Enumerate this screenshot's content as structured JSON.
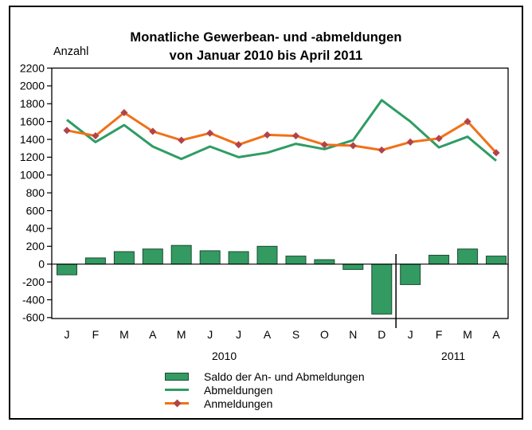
{
  "figure": {
    "background": "#ffffff",
    "border_color": "#000000"
  },
  "chart_data": {
    "type": "combo-bar-line",
    "title_line1": "Monatliche Gewerbean- und -abmeldungen",
    "title_line2": "von Januar 2010 bis April 2011",
    "y_axis_label": "Anzahl",
    "ylim": [
      -600,
      2200
    ],
    "y_ticks": [
      2200,
      2000,
      1800,
      1600,
      1400,
      1200,
      1000,
      800,
      600,
      400,
      200,
      0,
      -200,
      -400,
      -600
    ],
    "x_tick_labels": [
      "J",
      "F",
      "M",
      "A",
      "M",
      "J",
      "J",
      "A",
      "S",
      "O",
      "N",
      "D",
      "J",
      "F",
      "M",
      "A"
    ],
    "year_labels": [
      "2010",
      "2011"
    ],
    "year_group_ranges": [
      [
        0,
        11
      ],
      [
        12,
        15
      ]
    ],
    "year_divider_after_index": 11,
    "grid": false,
    "legend_position": "bottom",
    "axis_color": "#000000",
    "series": [
      {
        "name": "Saldo der An- und Abmeldungen",
        "type": "bar",
        "color": "#339a62",
        "border_color": "#1b4d31",
        "values": [
          -120,
          70,
          140,
          170,
          210,
          150,
          140,
          200,
          90,
          50,
          -60,
          -560,
          -230,
          100,
          170,
          90
        ]
      },
      {
        "name": "Abmeldungen",
        "type": "line",
        "color": "#2f9c64",
        "values": [
          1620,
          1370,
          1560,
          1320,
          1180,
          1320,
          1200,
          1250,
          1350,
          1290,
          1390,
          1840,
          1600,
          1310,
          1430,
          1160
        ]
      },
      {
        "name": "Anmeldungen",
        "type": "line",
        "color": "#f07119",
        "marker": "diamond",
        "marker_color": "#b2434a",
        "values": [
          1500,
          1440,
          1700,
          1490,
          1390,
          1470,
          1340,
          1450,
          1440,
          1340,
          1330,
          1280,
          1370,
          1410,
          1600,
          1250
        ]
      }
    ]
  }
}
